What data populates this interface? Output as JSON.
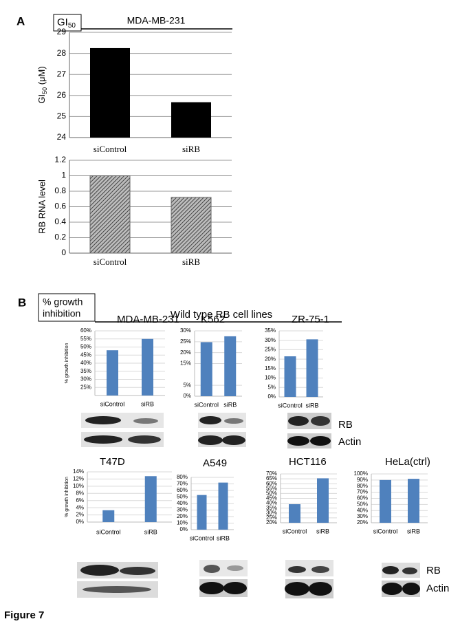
{
  "panel_a": {
    "label": "A",
    "box_label": "GI",
    "box_sub": "50",
    "title": "MDA-MB-231"
  },
  "panel_b": {
    "label": "B",
    "box_label_lines": [
      "% growth",
      "inhibition"
    ],
    "title": "Wild type RB cell lines",
    "blot_labels": [
      "RB",
      "Actin"
    ]
  },
  "caption": "Figure 7",
  "chart_data": [
    {
      "type": "bar",
      "ylabel_parts": [
        "GI",
        "50",
        " (μM)"
      ],
      "categories": [
        "siControl",
        "siRB"
      ],
      "values": [
        28.25,
        25.68
      ],
      "color": "#000000",
      "ylim": [
        24,
        29
      ],
      "yticks": [
        24,
        25,
        26,
        27,
        28,
        29
      ],
      "grid": true
    },
    {
      "type": "bar",
      "ylabel": "RB RNA level",
      "categories": [
        "siControl",
        "siRB"
      ],
      "values": [
        1,
        0.72
      ],
      "color": "#666666",
      "pattern": "hatched",
      "ylim": [
        0,
        1.2
      ],
      "yticks": [
        0,
        0.2,
        0.4,
        0.6,
        0.8,
        1,
        1.2
      ],
      "grid": true
    },
    {
      "type": "bar",
      "title": "MDA-MB-231",
      "ylabel": "% growth inhibition",
      "categories": [
        "siControl",
        "siRB"
      ],
      "values": [
        48,
        55
      ],
      "color": "#4f81bd",
      "ylim": [
        20,
        60
      ],
      "yticks": [
        {
          "value": 25,
          "label": "25%"
        },
        {
          "value": 30,
          "label": "30%"
        },
        {
          "value": 35,
          "label": "35%"
        },
        {
          "value": 40,
          "label": "40%"
        },
        {
          "value": 45,
          "label": "45%"
        },
        {
          "value": 50,
          "label": "50%"
        },
        {
          "value": 55,
          "label": "55%"
        },
        {
          "value": 60,
          "label": "60%"
        }
      ],
      "grid": true
    },
    {
      "type": "bar",
      "title": "K562",
      "categories": [
        "siControl",
        "siRB"
      ],
      "values": [
        24.8,
        27.5
      ],
      "color": "#4f81bd",
      "ylim": [
        0,
        30
      ],
      "yticks": [
        {
          "value": 0,
          "label": "0%"
        },
        {
          "value": 5,
          "label": "5%"
        },
        {
          "value": 15,
          "label": "15%"
        },
        {
          "value": 20,
          "label": "20%"
        },
        {
          "value": 25,
          "label": "25%"
        },
        {
          "value": 30,
          "label": "30%"
        }
      ],
      "grid": true
    },
    {
      "type": "bar",
      "title": "ZR-75-1",
      "categories": [
        "siControl",
        "siRB"
      ],
      "values": [
        21.5,
        30.5
      ],
      "color": "#4f81bd",
      "ylim": [
        0,
        35
      ],
      "yticks": [
        {
          "value": 0,
          "label": "0%"
        },
        {
          "value": 5,
          "label": "5%"
        },
        {
          "value": 10,
          "label": "10%"
        },
        {
          "value": 15,
          "label": "15%"
        },
        {
          "value": 20,
          "label": "20%"
        },
        {
          "value": 25,
          "label": "25%"
        },
        {
          "value": 30,
          "label": "30%"
        },
        {
          "value": 35,
          "label": "35%"
        }
      ],
      "grid": true
    },
    {
      "type": "bar",
      "title": "T47D",
      "ylabel": "% growth inhibition",
      "categories": [
        "siControl",
        "siRB"
      ],
      "values": [
        3.3,
        12.8
      ],
      "color": "#4f81bd",
      "ylim": [
        0,
        14
      ],
      "yticks": [
        {
          "value": 0,
          "label": "0%"
        },
        {
          "value": 2,
          "label": "2%"
        },
        {
          "value": 4,
          "label": "4%"
        },
        {
          "value": 6,
          "label": "6%"
        },
        {
          "value": 8,
          "label": "8%"
        },
        {
          "value": 10,
          "label": "10%"
        },
        {
          "value": 12,
          "label": "12%"
        },
        {
          "value": 14,
          "label": "14%"
        }
      ],
      "grid": true
    },
    {
      "type": "bar",
      "title": "A549",
      "categories": [
        "siControl",
        "siRB"
      ],
      "values": [
        53,
        72
      ],
      "color": "#4f81bd",
      "ylim": [
        0,
        80
      ],
      "yticks": [
        {
          "value": 0,
          "label": "0%"
        },
        {
          "value": 10,
          "label": "10%"
        },
        {
          "value": 20,
          "label": "20%"
        },
        {
          "value": 30,
          "label": "30%"
        },
        {
          "value": 40,
          "label": "40%"
        },
        {
          "value": 50,
          "label": "50%"
        },
        {
          "value": 60,
          "label": "60%"
        },
        {
          "value": 70,
          "label": "70%"
        },
        {
          "value": 80,
          "label": "80%"
        }
      ],
      "grid": true
    },
    {
      "type": "bar",
      "title": "HCT116",
      "categories": [
        "siControl",
        "siRB"
      ],
      "values": [
        39,
        65.5
      ],
      "color": "#4f81bd",
      "ylim": [
        20,
        70
      ],
      "yticks": [
        {
          "value": 20,
          "label": "20%"
        },
        {
          "value": 25,
          "label": "25%"
        },
        {
          "value": 30,
          "label": "30%"
        },
        {
          "value": 35,
          "label": "35%"
        },
        {
          "value": 40,
          "label": "40%"
        },
        {
          "value": 45,
          "label": "45%"
        },
        {
          "value": 50,
          "label": "50%"
        },
        {
          "value": 55,
          "label": "55%"
        },
        {
          "value": 60,
          "label": "60%"
        },
        {
          "value": 65,
          "label": "65%"
        },
        {
          "value": 70,
          "label": "70%"
        }
      ],
      "grid": true
    },
    {
      "type": "bar",
      "title": "HeLa(ctrl)",
      "categories": [
        "siControl",
        "siRB"
      ],
      "values": [
        90,
        92
      ],
      "color": "#4f81bd",
      "ylim": [
        20,
        100
      ],
      "yticks": [
        {
          "value": 20,
          "label": "20%"
        },
        {
          "value": 30,
          "label": "30%"
        },
        {
          "value": 40,
          "label": "40%"
        },
        {
          "value": 50,
          "label": "50%"
        },
        {
          "value": 60,
          "label": "60%"
        },
        {
          "value": 70,
          "label": "70%"
        },
        {
          "value": 80,
          "label": "80%"
        },
        {
          "value": 90,
          "label": "90%"
        },
        {
          "value": 100,
          "label": "100%"
        }
      ],
      "grid": true
    }
  ]
}
